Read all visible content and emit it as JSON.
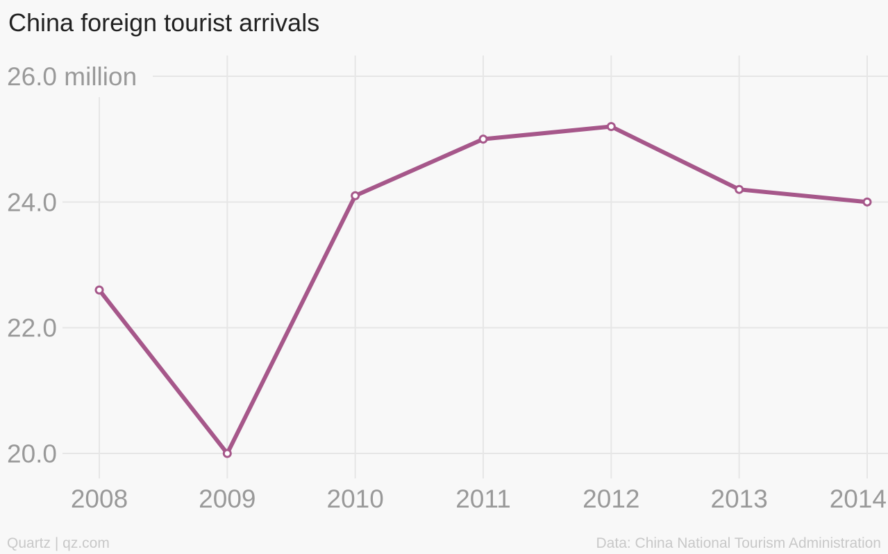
{
  "footer": {
    "credit": "Quartz | qz.com",
    "source": "Data: China National Tourism Administration"
  },
  "colors": {
    "line": "#a6578a",
    "grid": "#e6e6e6",
    "tick_text": "#999999",
    "title": "#222222",
    "footer": "#c8c8c8",
    "background": "#f8f8f8"
  },
  "chart_data": {
    "type": "line",
    "title": "China foreign tourist arrivals",
    "xlabel": "",
    "ylabel": "",
    "x": [
      "2008",
      "2009",
      "2010",
      "2011",
      "2012",
      "2013",
      "2014"
    ],
    "series": [
      {
        "values": [
          22.6,
          20.0,
          24.1,
          25.0,
          25.2,
          24.2,
          24.0
        ]
      }
    ],
    "ylim": [
      20.0,
      26.0
    ],
    "y_ticks": [
      {
        "value": 20.0,
        "label": "20.0"
      },
      {
        "value": 22.0,
        "label": "22.0"
      },
      {
        "value": 24.0,
        "label": "24.0"
      },
      {
        "value": 26.0,
        "label": "26.0 million"
      }
    ],
    "grid": true,
    "markers": true
  }
}
